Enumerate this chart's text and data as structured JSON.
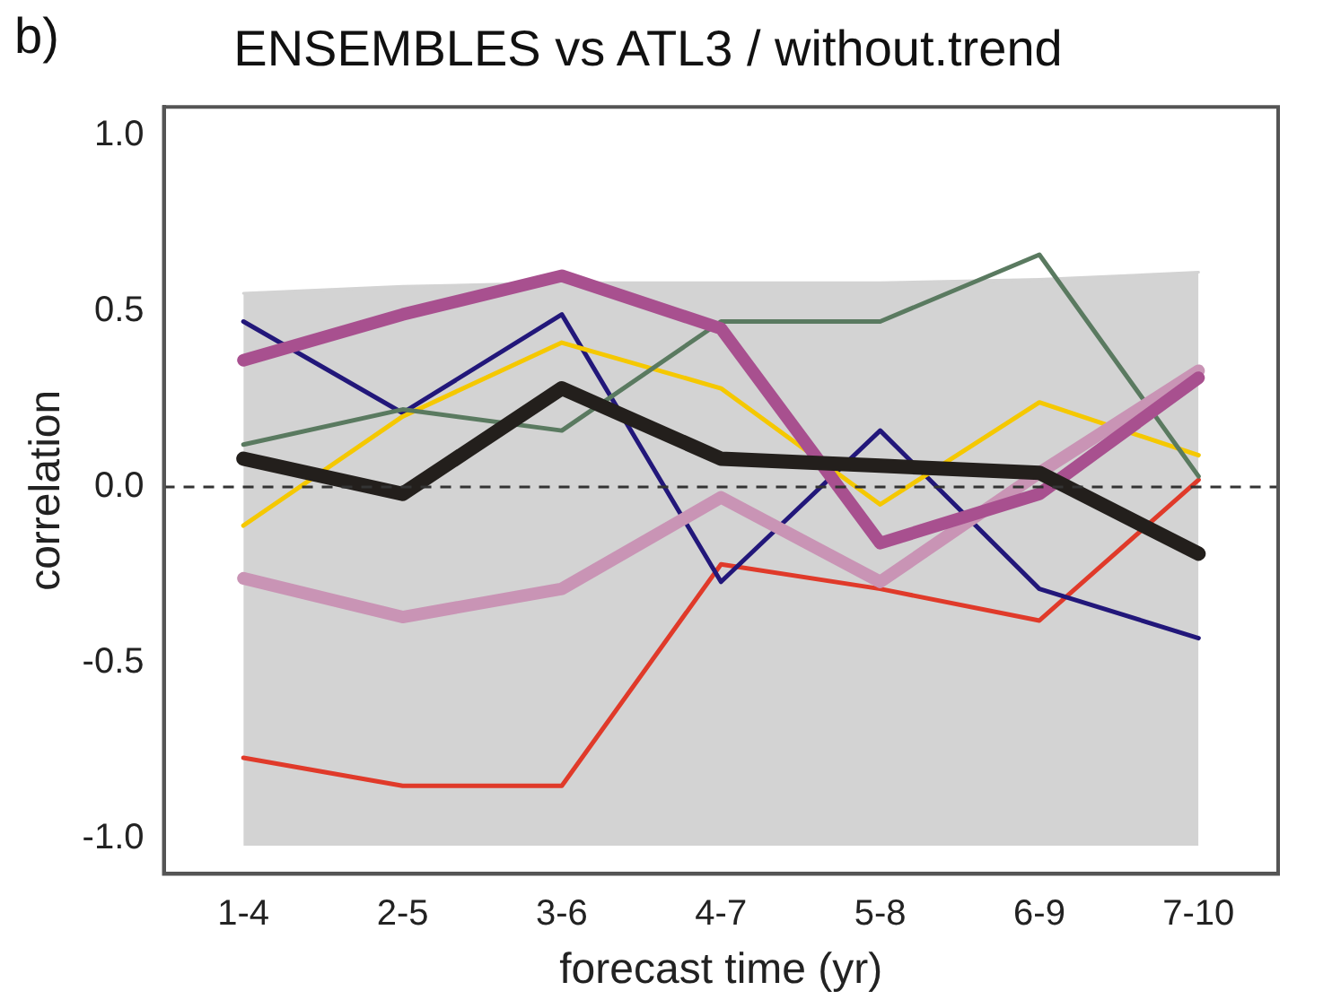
{
  "chart_data": {
    "type": "line",
    "title": "ENSEMBLES vs ATL3 / without.trend",
    "xlabel": "forecast time (yr)",
    "ylabel": "correlation",
    "annotations": [
      "b)"
    ],
    "categories": [
      "1-4",
      "2-5",
      "3-6",
      "4-7",
      "5-8",
      "6-9",
      "7-10"
    ],
    "ylim": [
      -1.1,
      1.08
    ],
    "yticks": [
      {
        "value": -1,
        "label": "-1.0"
      },
      -0.5,
      {
        "value": 0,
        "label": "0.0"
      },
      0.5,
      {
        "value": 1,
        "label": "1.0"
      }
    ],
    "grid": false,
    "legend": false,
    "marker": "none",
    "ref_lines": [
      {
        "axis": "y",
        "value": 0,
        "color": "#333333",
        "line_style": "dashed"
      }
    ],
    "series": [
      {
        "type": "line",
        "color": "#d3d3d3",
        "values": [
          0.55,
          0.57,
          0.58,
          0.58,
          0.58,
          0.59,
          0.61
        ],
        "lower": [
          -1.02,
          -1.02,
          -1.02,
          -1.02,
          -1.02,
          -1.02,
          -1.02
        ],
        "upper": [
          0.55,
          0.57,
          0.58,
          0.58,
          0.58,
          0.59,
          0.61
        ]
      },
      {
        "color": "#e03a2a",
        "values": [
          -0.77,
          -0.85,
          -0.85,
          -0.22,
          -0.29,
          -0.38,
          0.02
        ]
      },
      {
        "color": "#22177a",
        "values": [
          0.47,
          0.21,
          0.49,
          -0.27,
          0.16,
          -0.29,
          -0.43
        ]
      },
      {
        "color": "#f5c800",
        "values": [
          -0.11,
          0.2,
          0.41,
          0.28,
          -0.05,
          0.24,
          0.09
        ]
      },
      {
        "color": "#5a7a60",
        "values": [
          0.12,
          0.22,
          0.16,
          0.47,
          0.47,
          0.66,
          0.03
        ]
      },
      {
        "color": "#c994b5",
        "values": [
          -0.26,
          -0.37,
          -0.29,
          -0.03,
          -0.27,
          0.04,
          0.33
        ]
      },
      {
        "color": "#a8508f",
        "values": [
          0.36,
          0.49,
          0.6,
          0.45,
          -0.16,
          -0.02,
          0.31
        ]
      },
      {
        "color": "#231f1c",
        "values": [
          0.08,
          -0.02,
          0.28,
          0.08,
          0.06,
          0.04,
          -0.19
        ]
      }
    ]
  }
}
